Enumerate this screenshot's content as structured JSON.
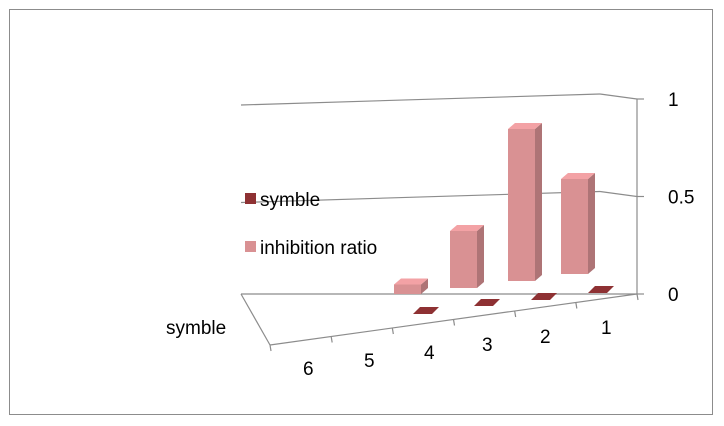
{
  "chart_data": {
    "type": "bar",
    "subtype": "3d-column",
    "categories": [
      "6",
      "5",
      "4",
      "3",
      "2",
      "1"
    ],
    "series": [
      {
        "name": "symble",
        "values": [
          0,
          0,
          0,
          0,
          0,
          0
        ],
        "color": "#8e3133"
      },
      {
        "name": "inhibition ratio",
        "values": [
          null,
          0.05,
          0.3,
          0.8,
          0.5,
          null
        ],
        "color": "#d99193"
      }
    ],
    "depth_axis_label": "symble",
    "z_ticks": [
      "0",
      "0.5",
      "1"
    ],
    "zlim": [
      0,
      1
    ],
    "grid": true,
    "legend": {
      "position": "left",
      "items": [
        "symble",
        "inhibition ratio"
      ]
    }
  }
}
